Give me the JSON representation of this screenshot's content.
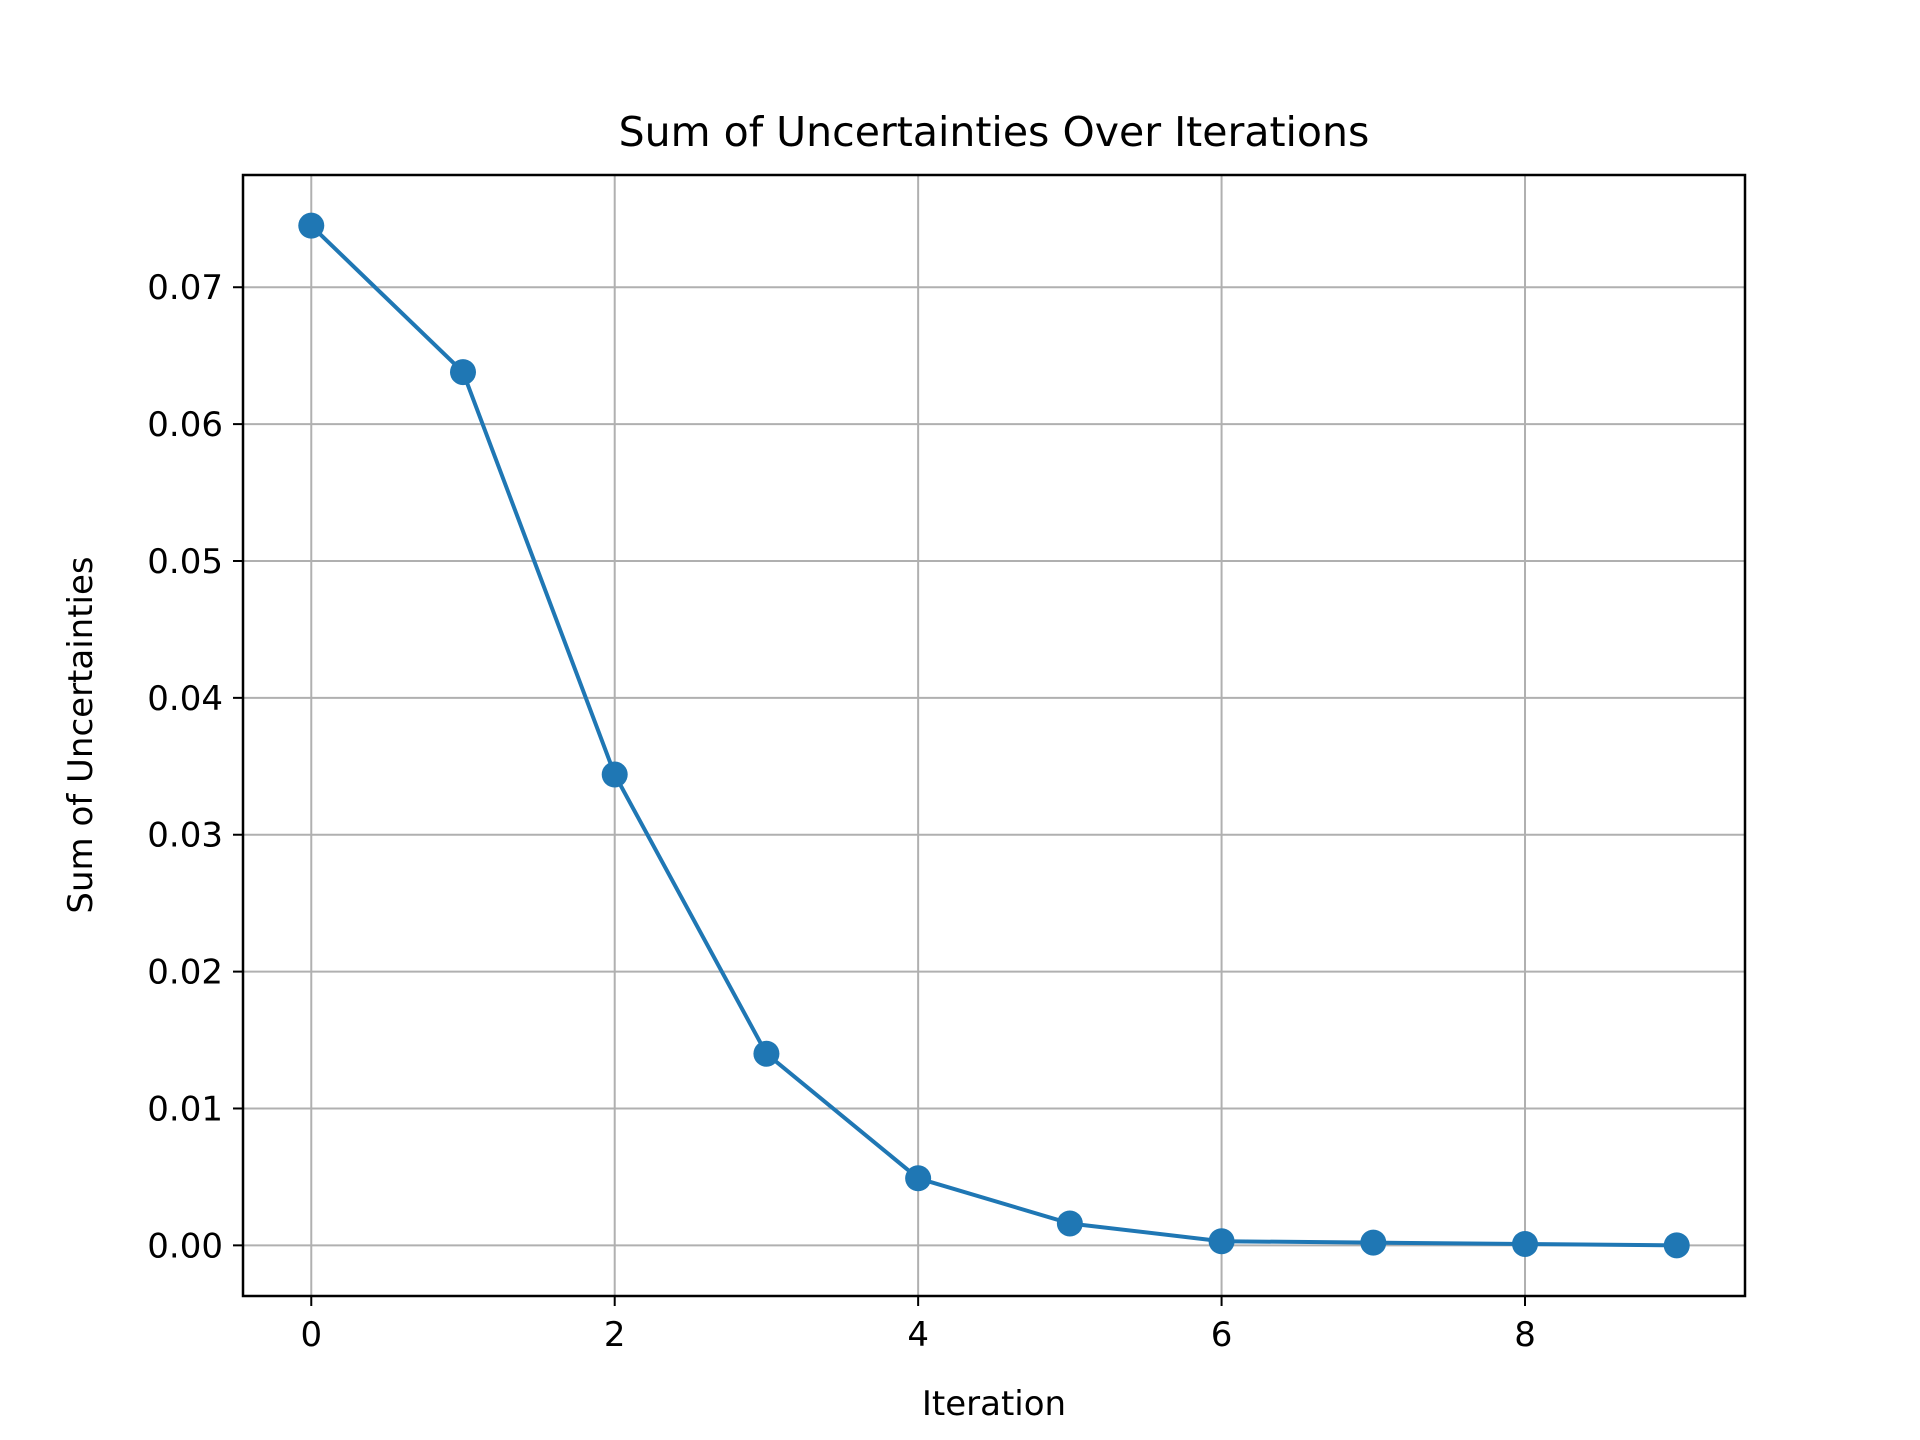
{
  "chart_data": {
    "type": "line",
    "title": "Sum of Uncertainties Over Iterations",
    "xlabel": "Iteration",
    "ylabel": "Sum of Uncertainties",
    "x": [
      0,
      1,
      2,
      3,
      4,
      5,
      6,
      7,
      8,
      9
    ],
    "series": [
      {
        "values": [
          0.0745,
          0.0638,
          0.0344,
          0.014,
          0.0049,
          0.0016,
          0.0003,
          0.0002,
          0.0001,
          0.0
        ]
      }
    ],
    "xlim": [
      -0.45,
      9.45
    ],
    "ylim": [
      -0.0037,
      0.0782
    ],
    "xticks": [
      0,
      2,
      4,
      6,
      8
    ],
    "xtick_labels": [
      "0",
      "2",
      "4",
      "6",
      "8"
    ],
    "yticks": [
      0.0,
      0.01,
      0.02,
      0.03,
      0.04,
      0.05,
      0.06,
      0.07
    ],
    "ytick_labels": [
      "0.00",
      "0.01",
      "0.02",
      "0.03",
      "0.04",
      "0.05",
      "0.06",
      "0.07"
    ],
    "grid": true,
    "marker": "circle",
    "line_color": "#1f77b4",
    "grid_color": "#b0b0b0"
  }
}
